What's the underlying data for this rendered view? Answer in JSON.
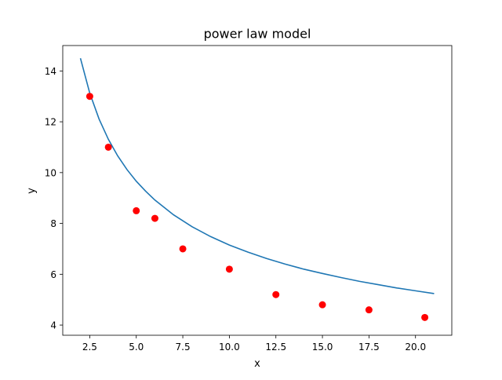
{
  "chart_data": {
    "type": "scatter",
    "title": "power law model",
    "xlabel": "x",
    "ylabel": "y",
    "xlim": [
      1.05,
      21.95
    ],
    "ylim": [
      3.6,
      15.0
    ],
    "xticks": [
      2.5,
      5.0,
      7.5,
      10.0,
      12.5,
      15.0,
      17.5,
      20.0
    ],
    "xtick_labels": [
      "2.5",
      "5.0",
      "7.5",
      "10.0",
      "12.5",
      "15.0",
      "17.5",
      "20.0"
    ],
    "yticks": [
      4,
      6,
      8,
      10,
      12,
      14
    ],
    "ytick_labels": [
      "4",
      "6",
      "8",
      "10",
      "12",
      "14"
    ],
    "grid": false,
    "legend": "none",
    "series": [
      {
        "kind": "scatter",
        "color": "#ff0000",
        "x": [
          2.5,
          3.5,
          5.0,
          6.0,
          7.5,
          10.0,
          12.5,
          15.0,
          17.5,
          20.5
        ],
        "y": [
          13.0,
          11.0,
          8.5,
          8.2,
          7.0,
          6.2,
          5.2,
          4.8,
          4.6,
          4.3
        ]
      },
      {
        "kind": "line",
        "color": "#1f77b4",
        "x": [
          2.0,
          2.5,
          3.0,
          3.5,
          4.0,
          4.5,
          5.0,
          5.5,
          6.0,
          7.0,
          8.0,
          9.0,
          10.0,
          11.0,
          12.0,
          13.0,
          14.0,
          15.0,
          16.0,
          17.0,
          18.0,
          19.0,
          20.0,
          21.0
        ],
        "y": [
          14.5,
          13.13,
          12.11,
          11.31,
          10.66,
          10.12,
          9.66,
          9.27,
          8.92,
          8.34,
          7.87,
          7.48,
          7.15,
          6.87,
          6.62,
          6.4,
          6.2,
          6.03,
          5.87,
          5.72,
          5.59,
          5.46,
          5.35,
          5.24
        ]
      }
    ]
  }
}
